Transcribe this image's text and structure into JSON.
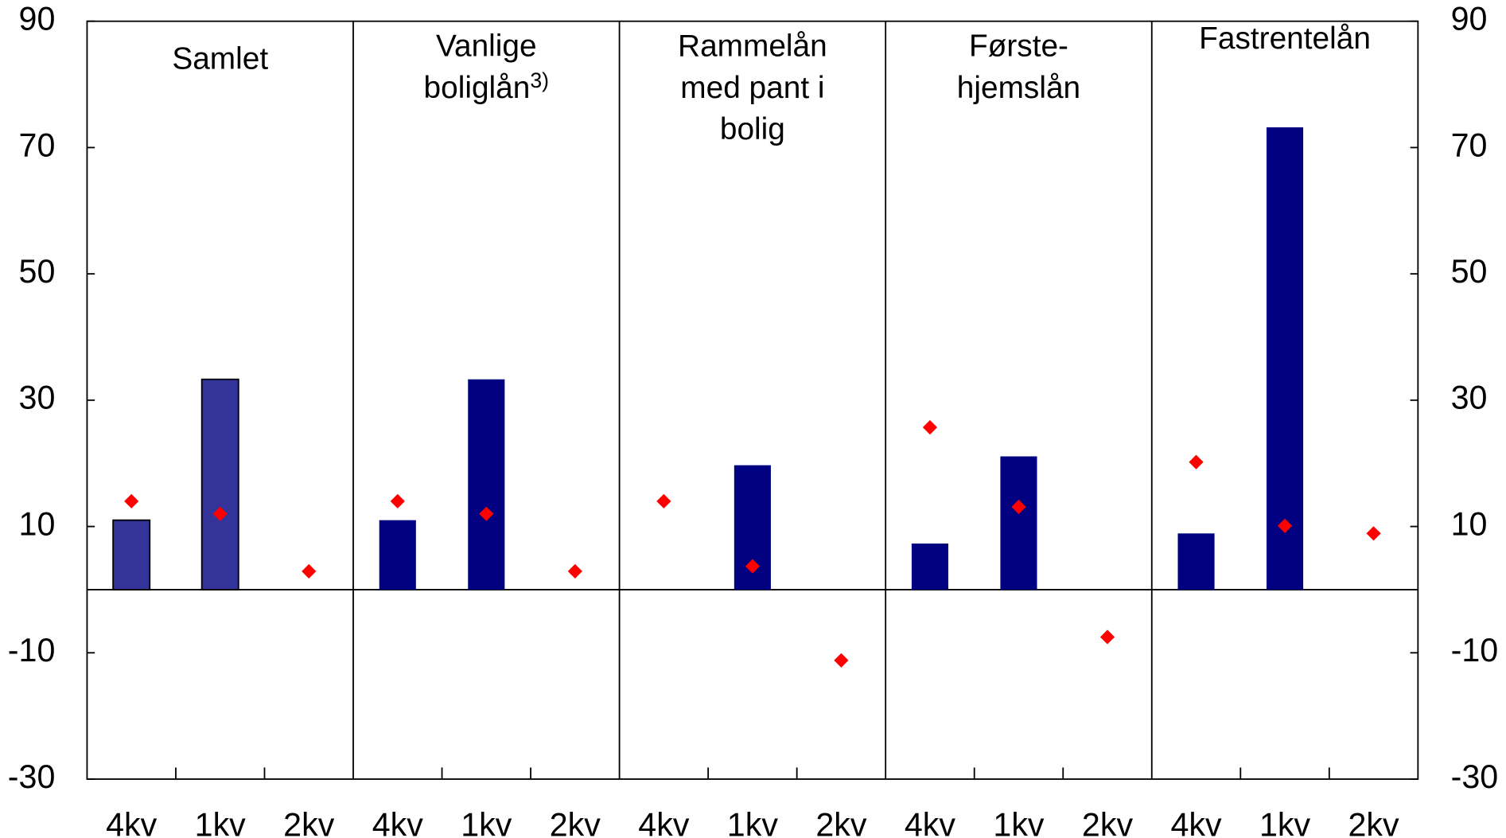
{
  "chart_data": {
    "type": "bar",
    "categories": [
      "4kv",
      "1kv",
      "2kv",
      "4kv",
      "1kv",
      "2kv",
      "4kv",
      "1kv",
      "2kv",
      "4kv",
      "1kv",
      "2kv",
      "4kv",
      "1kv",
      "2kv"
    ],
    "panels": [
      {
        "lines": [
          "Samlet"
        ]
      },
      {
        "lines": [
          "Vanlige",
          "boliglån"
        ],
        "superscript": "3)"
      },
      {
        "lines": [
          "Rammelån",
          "med pant i",
          "bolig"
        ]
      },
      {
        "lines": [
          "Første-",
          "hjemslån"
        ]
      },
      {
        "lines": [
          "Fastrentelån"
        ]
      }
    ],
    "series": [
      {
        "type": "bar",
        "color": "#000080",
        "colors": [
          "#333399",
          "#333399",
          "#333399",
          "#000080",
          "#000080",
          "#000080",
          "#000080",
          "#000080",
          "#000080",
          "#000080",
          "#000080",
          "#000080",
          "#000080",
          "#000080",
          "#000080"
        ],
        "values": [
          11,
          33.3,
          null,
          11,
          33.3,
          null,
          null,
          19.7,
          null,
          7.3,
          21.1,
          null,
          8.9,
          73.2,
          null
        ]
      },
      {
        "type": "scatter",
        "color": "#ff0000",
        "values": [
          14,
          12,
          2.9,
          14,
          12,
          2.9,
          14,
          3.7,
          -11.2,
          25.7,
          13.1,
          -7.5,
          20.2,
          10.1,
          8.9
        ]
      }
    ],
    "ylim": [
      -30,
      90
    ],
    "yticks": [
      -30,
      -10,
      10,
      30,
      50,
      70,
      90
    ],
    "y2lim": [
      -30,
      90
    ],
    "y2ticks": [
      -30,
      -10,
      10,
      30,
      50,
      70,
      90
    ]
  }
}
